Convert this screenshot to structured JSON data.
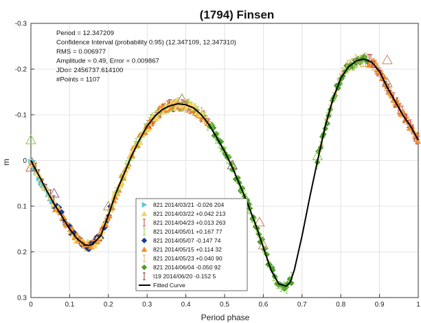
{
  "chart_data": {
    "type": "scatter",
    "title": "(1794) Finsen",
    "xlabel": "Period phase",
    "ylabel": "m",
    "xlim": [
      0,
      1
    ],
    "ylim": [
      -0.3,
      0.3
    ],
    "y_axis_reversed": true,
    "grid": true,
    "legend_position": "bottom-center",
    "x_ticks": [
      "0",
      "0.1",
      "0.2",
      "0.3",
      "0.4",
      "0.5",
      "0.6",
      "0.7",
      "0.8",
      "0.9",
      "1"
    ],
    "y_ticks": [
      "-0.3",
      "-0.2",
      "-0.1",
      "0",
      "0.1",
      "0.2",
      "0.3"
    ],
    "info_lines": [
      "Period = 12.347209",
      "Confidence Interval (probability 0.95) (12.347109, 12.347310)",
      "RMS = 0.006977",
      "Amplitude = 0.49, Error = 0.009867",
      "JDo= 2456737.614100",
      "#Points =  1107"
    ],
    "fitted_curve": {
      "name": "Fitted Curve",
      "color": "#000000",
      "points": [
        [
          0.0,
          0.0
        ],
        [
          0.02,
          0.032
        ],
        [
          0.04,
          0.065
        ],
        [
          0.06,
          0.095
        ],
        [
          0.08,
          0.122
        ],
        [
          0.1,
          0.15
        ],
        [
          0.12,
          0.172
        ],
        [
          0.14,
          0.185
        ],
        [
          0.15,
          0.186
        ],
        [
          0.16,
          0.183
        ],
        [
          0.18,
          0.165
        ],
        [
          0.2,
          0.12
        ],
        [
          0.22,
          0.07
        ],
        [
          0.24,
          0.03
        ],
        [
          0.26,
          -0.01
        ],
        [
          0.28,
          -0.045
        ],
        [
          0.3,
          -0.075
        ],
        [
          0.32,
          -0.097
        ],
        [
          0.34,
          -0.112
        ],
        [
          0.36,
          -0.12
        ],
        [
          0.38,
          -0.124
        ],
        [
          0.4,
          -0.122
        ],
        [
          0.42,
          -0.115
        ],
        [
          0.44,
          -0.1
        ],
        [
          0.46,
          -0.078
        ],
        [
          0.48,
          -0.05
        ],
        [
          0.5,
          -0.02
        ],
        [
          0.52,
          0.015
        ],
        [
          0.54,
          0.055
        ],
        [
          0.56,
          0.095
        ],
        [
          0.58,
          0.14
        ],
        [
          0.6,
          0.19
        ],
        [
          0.62,
          0.24
        ],
        [
          0.64,
          0.27
        ],
        [
          0.66,
          0.275
        ],
        [
          0.67,
          0.265
        ],
        [
          0.68,
          0.24
        ],
        [
          0.7,
          0.165
        ],
        [
          0.72,
          0.08
        ],
        [
          0.74,
          0.0
        ],
        [
          0.76,
          -0.075
        ],
        [
          0.78,
          -0.135
        ],
        [
          0.8,
          -0.18
        ],
        [
          0.82,
          -0.205
        ],
        [
          0.84,
          -0.218
        ],
        [
          0.86,
          -0.222
        ],
        [
          0.88,
          -0.215
        ],
        [
          0.9,
          -0.195
        ],
        [
          0.92,
          -0.16
        ],
        [
          0.94,
          -0.13
        ],
        [
          0.96,
          -0.1
        ],
        [
          0.98,
          -0.075
        ],
        [
          1.0,
          -0.045
        ]
      ]
    },
    "series": [
      {
        "name": "821 2014/03/21  -0.026  204",
        "color": "#5dc8d4",
        "marker": "triangle-right",
        "x_range": [
          0.0,
          0.03
        ]
      },
      {
        "name": "821 2014/03/22  +0.042  213",
        "color": "#f2d36b",
        "marker": "triangle-up",
        "x_range": [
          0.1,
          0.19
        ]
      },
      {
        "name": "821 2014/04/23  +0.013  263",
        "color": "#c04040",
        "marker": "errorbar",
        "x_range": [
          0.35,
          0.45
        ]
      },
      {
        "name": "821 2014/05/01  +0.167   77",
        "color": "#8fd14f",
        "marker": "errorbar",
        "x_range": [
          0.28,
          0.42
        ]
      },
      {
        "name": "821 2014/05/07  -0.147   74",
        "color": "#203c8c",
        "marker": "diamond",
        "x_range": [
          0.08,
          0.19
        ]
      },
      {
        "name": "821 2014/05/15  +0.114   32",
        "color": "#f28c28",
        "marker": "triangle-up",
        "x_range": [
          0.3,
          0.4
        ]
      },
      {
        "name": "821 2014/05/23  +0.040   90",
        "color": "#e0b070",
        "marker": "errorbar",
        "x_range": [
          0.88,
          1.0
        ]
      },
      {
        "name": "821 2014/06/04  -0.050   92",
        "color": "#4a9e2a",
        "marker": "diamond",
        "x_range": [
          0.45,
          0.67
        ]
      },
      {
        "name": "I19 2014/06/20  -0.152    5",
        "color": "#8b3a2e",
        "marker": "errorbar",
        "x_range": [
          0.0,
          0.08
        ]
      }
    ],
    "big_markers": [
      {
        "x": 0.0,
        "y": -0.045,
        "color": "#8fd14f"
      },
      {
        "x": 0.0,
        "y": 0.015,
        "color": "#d07050"
      },
      {
        "x": 0.06,
        "y": 0.072,
        "color": "#9a6a9a"
      },
      {
        "x": 0.2,
        "y": 0.1,
        "color": "#b0a060"
      },
      {
        "x": 0.39,
        "y": -0.135,
        "color": "#a09060"
      },
      {
        "x": 0.52,
        "y": 0.01,
        "color": "#907060"
      },
      {
        "x": 0.59,
        "y": 0.135,
        "color": "#d08060"
      },
      {
        "x": 0.6,
        "y": 0.185,
        "color": "#c09070"
      },
      {
        "x": 0.74,
        "y": -0.01,
        "color": "#8fd14f"
      },
      {
        "x": 0.92,
        "y": -0.22,
        "color": "#d09070"
      },
      {
        "x": 0.92,
        "y": -0.17,
        "color": "#a09060"
      }
    ]
  }
}
